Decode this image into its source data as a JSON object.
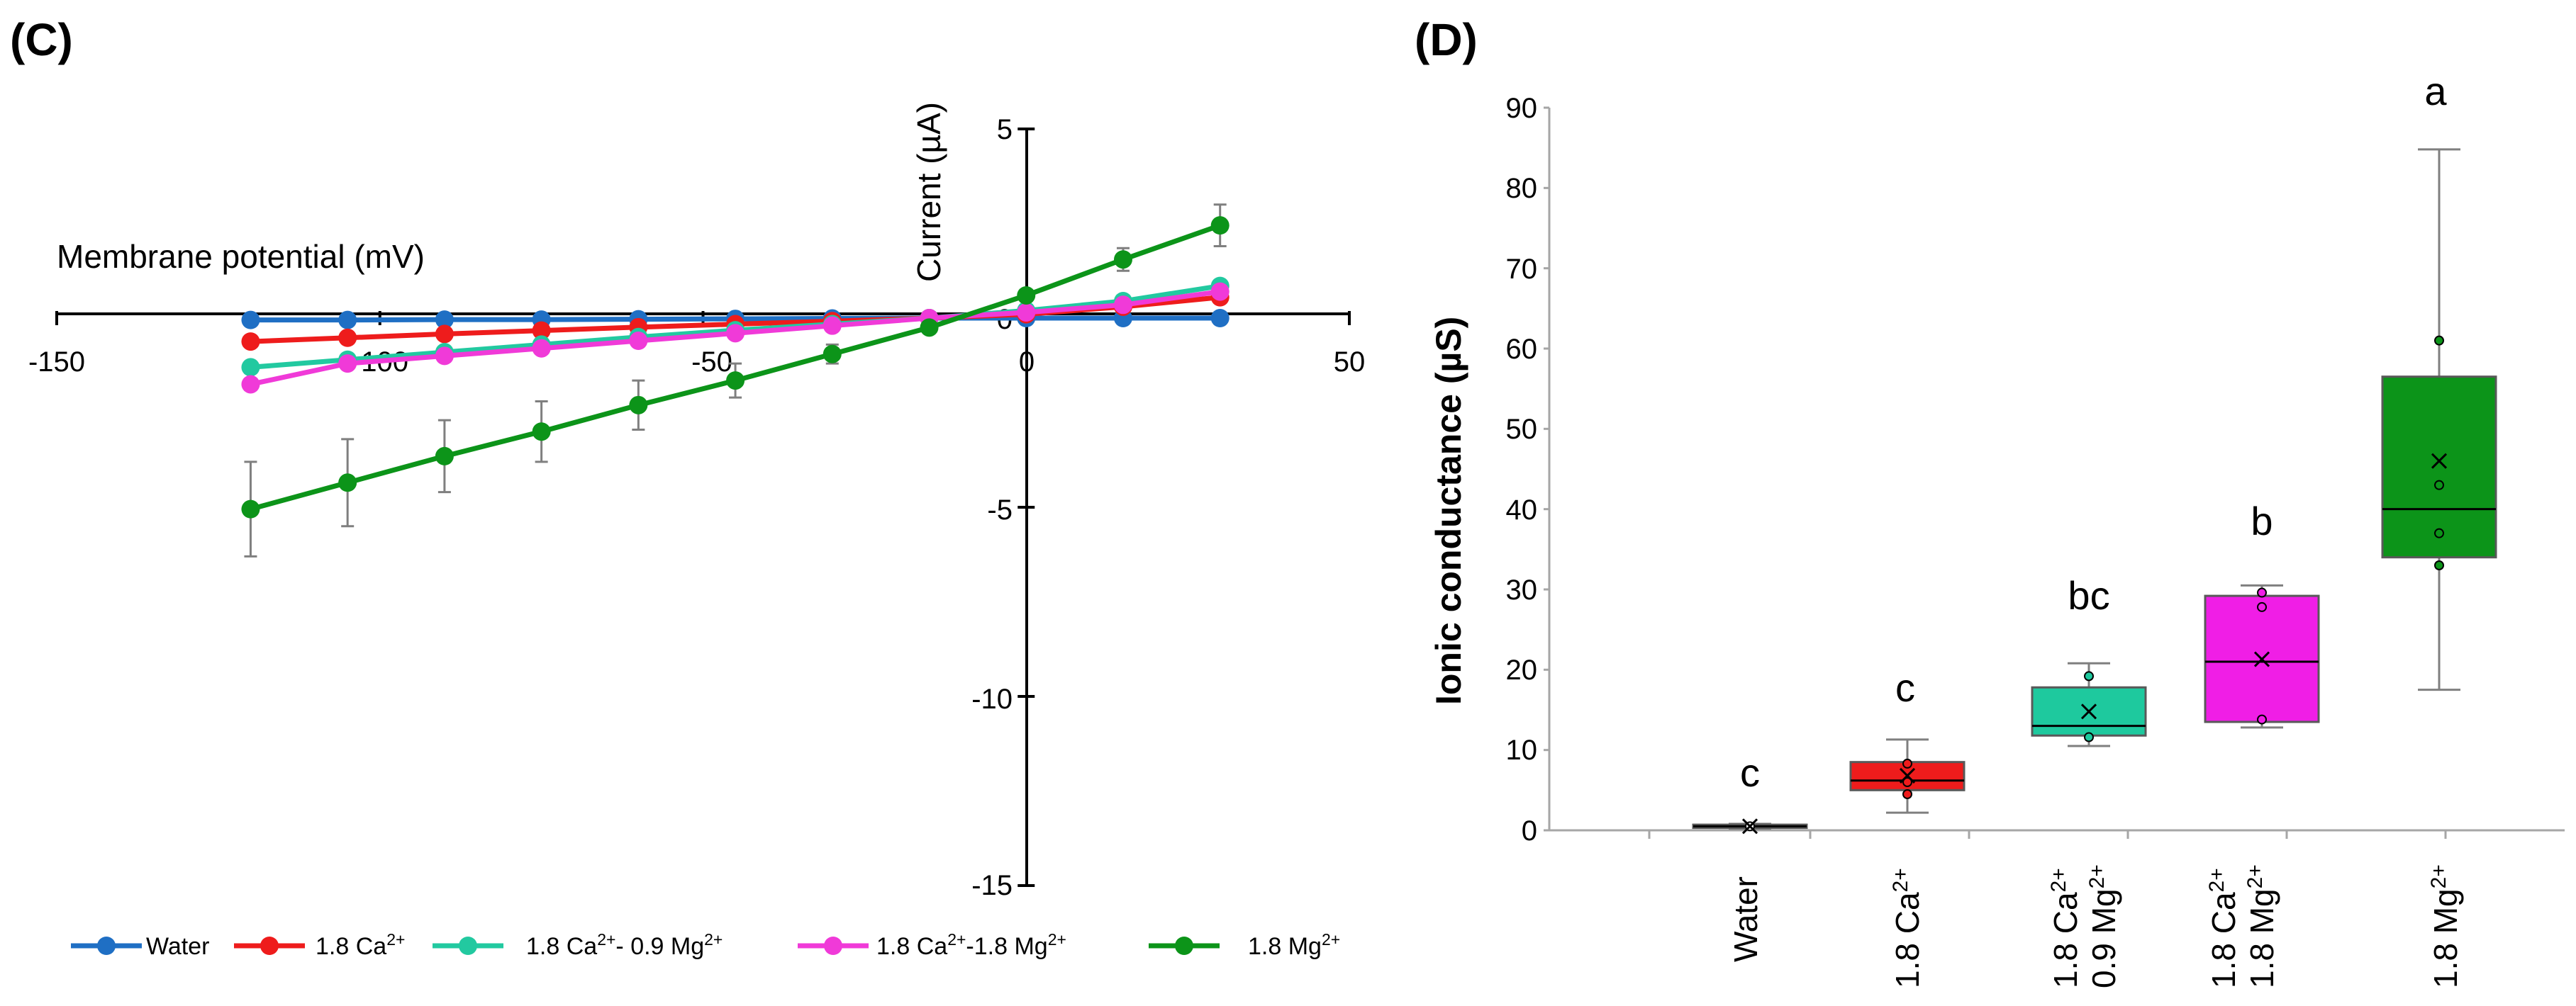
{
  "chart_data": [
    {
      "panel": "(C)",
      "type": "line",
      "xlabel": "Membrane potential (mV)",
      "ylabel": "Current (µA)",
      "xlim": [
        -150,
        50
      ],
      "ylim": [
        -15,
        5
      ],
      "xticks": [
        -150,
        -100,
        -50,
        0,
        50
      ],
      "yticks": [
        5,
        0,
        -5,
        -10,
        -15
      ],
      "x": [
        -120,
        -105,
        -90,
        -75,
        -60,
        -45,
        -30,
        -15,
        0,
        15,
        30
      ],
      "series": [
        {
          "name": "Water",
          "sup": "",
          "color": "#1f6fc4",
          "values": [
            -0.05,
            -0.05,
            -0.04,
            -0.04,
            -0.03,
            -0.02,
            -0.01,
            0.0,
            0.0,
            0.0,
            0.0
          ],
          "err": [
            0,
            0,
            0,
            0,
            0,
            0,
            0,
            0,
            0,
            0,
            0
          ]
        },
        {
          "name": "1.8 Ca",
          "sup": "2+",
          "color": "#ee1c1c",
          "values": [
            -0.62,
            -0.52,
            -0.42,
            -0.33,
            -0.24,
            -0.16,
            -0.08,
            0.0,
            0.1,
            0.3,
            0.55
          ],
          "err": [
            0,
            0,
            0,
            0,
            0,
            0,
            0,
            0,
            0,
            0,
            0
          ]
        },
        {
          "name": "1.8 Ca",
          "sup": "2+",
          "name2": "- 0.9 Mg",
          "sup2": "2+",
          "color": "#22c9a0",
          "values": [
            -1.3,
            -1.1,
            -0.9,
            -0.7,
            -0.5,
            -0.32,
            -0.16,
            0.0,
            0.2,
            0.45,
            0.85
          ],
          "err": [
            0,
            0,
            0,
            0,
            0,
            0,
            0,
            0,
            0,
            0,
            0
          ]
        },
        {
          "name": "1.8 Ca",
          "sup": "2+",
          "name2": "-1.8 Mg",
          "sup2": "2+",
          "color": "#f03ad8",
          "values": [
            -1.75,
            -1.2,
            -1.0,
            -0.8,
            -0.6,
            -0.4,
            -0.2,
            0.0,
            0.15,
            0.35,
            0.7
          ],
          "err": [
            0,
            0,
            0,
            0,
            0,
            0,
            0,
            0,
            0,
            0,
            0
          ]
        },
        {
          "name": "1.8 Mg",
          "sup": "2+",
          "color": "#0c9419",
          "values": [
            -5.05,
            -4.35,
            -3.65,
            -3.0,
            -2.3,
            -1.65,
            -0.95,
            -0.25,
            0.6,
            1.55,
            2.45
          ],
          "err": [
            1.25,
            1.15,
            0.95,
            0.8,
            0.65,
            0.45,
            0.25,
            0.0,
            0.0,
            0.3,
            0.55
          ]
        }
      ]
    },
    {
      "panel": "(D)",
      "type": "box",
      "ylabel": "Ionic conductance (µS)",
      "ylim": [
        0,
        90
      ],
      "yticks": [
        0,
        10,
        20,
        30,
        40,
        50,
        60,
        70,
        80,
        90
      ],
      "groups": [
        {
          "label": "Water",
          "label2": "",
          "sup": "",
          "sup2": "",
          "color": "#ffffff",
          "min": 0.2,
          "q1": 0.3,
          "median": 0.5,
          "q3": 0.7,
          "max": 0.8,
          "mean": 0.5,
          "points": [
            0.5
          ],
          "letter": "c"
        },
        {
          "label": "1.8 Ca",
          "label2": "",
          "sup": "2+",
          "sup2": "",
          "color": "#ee1c1c",
          "min": 2.2,
          "q1": 5.0,
          "median": 6.2,
          "q3": 8.5,
          "max": 11.3,
          "mean": 6.8,
          "points": [
            4.5,
            6.0,
            8.3
          ],
          "letter": "c"
        },
        {
          "label": "1.8 Ca",
          "label2": "0.9 Mg",
          "sup": "2+",
          "sup2": "2+",
          "color": "#1ec99e",
          "min": 10.5,
          "q1": 11.8,
          "median": 13.0,
          "q3": 17.8,
          "max": 20.8,
          "mean": 14.8,
          "points": [
            11.6,
            19.2
          ],
          "letter": "bc"
        },
        {
          "label": "1.8 Ca",
          "label2": "1.8 Mg",
          "sup": "2+",
          "sup2": "2+",
          "color": "#f01ee6",
          "min": 12.8,
          "q1": 13.5,
          "median": 21.0,
          "q3": 29.2,
          "max": 30.5,
          "mean": 21.3,
          "points": [
            13.8,
            27.8,
            29.6
          ],
          "letter": "b"
        },
        {
          "label": "1.8 Mg",
          "label2": "",
          "sup": "2+",
          "sup2": "",
          "color": "#0c9419",
          "min": 17.5,
          "q1": 34.0,
          "median": 40.0,
          "q3": 56.5,
          "max": 84.8,
          "mean": 46.0,
          "points": [
            33.0,
            37.0,
            43.0,
            61.0
          ],
          "letter": "a"
        }
      ]
    }
  ]
}
